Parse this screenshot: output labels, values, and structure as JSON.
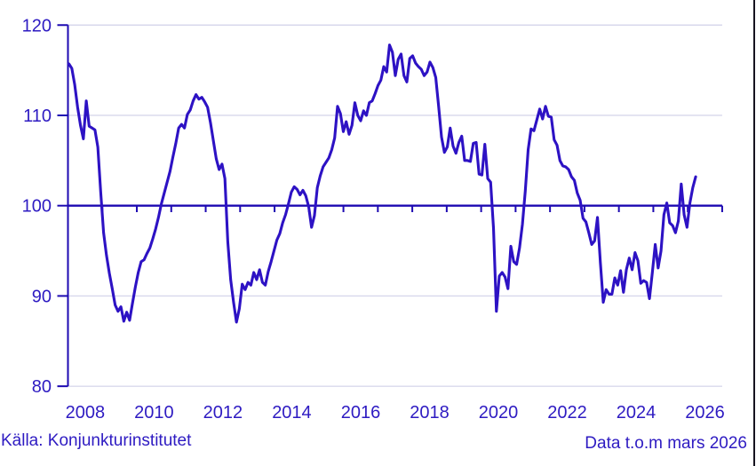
{
  "footer": {
    "source": "Källa: Konjunkturinstitutet",
    "note": "Data t.o.m mars 2026"
  },
  "colors": {
    "line": "#2d12c4",
    "axis": "#1d0ab2",
    "text": "#2e1bc2",
    "grid": "#d8d8ec",
    "screen_edge": "#16131f",
    "background": "#ffffff"
  },
  "chart_data": {
    "type": "line",
    "title": "",
    "xlabel": "",
    "ylabel": "",
    "ylim": [
      80,
      120
    ],
    "yticks": [
      80,
      90,
      100,
      110,
      120
    ],
    "baseline": 100,
    "grid": "horizontal-light",
    "legend": "none",
    "x_year_labels": [
      "2008",
      "2010",
      "2012",
      "2014",
      "2016",
      "2018",
      "2020",
      "2022",
      "2024",
      "2026"
    ],
    "x_tick_years_first": 2008,
    "x_tick_years_last": 2027,
    "series": [
      {
        "frequency": "monthly",
        "start": "2008-02",
        "end": "2026-03",
        "values": [
          115.7,
          115.2,
          113.4,
          110.9,
          108.9,
          107.4,
          111.6,
          108.8,
          108.6,
          108.4,
          106.5,
          101.5,
          97.0,
          94.5,
          92.5,
          90.8,
          89.0,
          88.3,
          88.8,
          87.2,
          88.2,
          87.3,
          89.2,
          91.0,
          92.6,
          93.8,
          94.0,
          94.7,
          95.3,
          96.3,
          97.4,
          98.7,
          100.2,
          101.4,
          102.6,
          103.8,
          105.4,
          106.9,
          108.6,
          109.0,
          108.6,
          110.1,
          110.6,
          111.6,
          112.3,
          111.8,
          112.0,
          111.5,
          110.9,
          109.2,
          107.2,
          105.2,
          104.0,
          104.6,
          103.0,
          96.0,
          91.8,
          89.3,
          87.1,
          88.6,
          91.3,
          90.7,
          91.5,
          91.2,
          92.6,
          91.8,
          92.9,
          91.5,
          91.2,
          92.7,
          93.8,
          95.0,
          96.2,
          96.9,
          98.1,
          99.0,
          100.2,
          101.5,
          102.1,
          101.8,
          101.2,
          101.7,
          101.1,
          99.9,
          97.6,
          98.9,
          102.0,
          103.3,
          104.3,
          104.8,
          105.3,
          106.2,
          107.5,
          111.0,
          110.2,
          108.2,
          109.3,
          107.9,
          108.9,
          111.4,
          110.0,
          109.4,
          110.5,
          110.0,
          111.4,
          111.6,
          112.4,
          113.3,
          113.9,
          115.4,
          114.8,
          117.8,
          117.0,
          114.4,
          116.2,
          116.8,
          114.4,
          113.7,
          116.3,
          116.6,
          115.8,
          115.4,
          115.1,
          114.4,
          114.8,
          115.9,
          115.3,
          114.2,
          111.0,
          107.6,
          105.9,
          106.5,
          108.6,
          106.6,
          105.8,
          107.0,
          107.7,
          105.0,
          105.0,
          104.9,
          106.9,
          107.0,
          103.5,
          103.4,
          106.8,
          103.0,
          102.6,
          97.5,
          88.3,
          92.2,
          92.6,
          92.1,
          90.8,
          95.5,
          93.8,
          93.5,
          95.3,
          97.9,
          101.6,
          106.2,
          108.5,
          108.3,
          109.5,
          110.7,
          109.6,
          111.0,
          109.9,
          109.8,
          107.3,
          106.7,
          105.0,
          104.4,
          104.3,
          104.0,
          103.2,
          102.8,
          101.4,
          100.6,
          98.6,
          98.2,
          97.0,
          95.7,
          96.1,
          98.7,
          93.7,
          89.3,
          90.7,
          90.2,
          90.2,
          92.0,
          91.2,
          92.8,
          90.4,
          92.9,
          94.2,
          92.9,
          94.8,
          93.9,
          91.4,
          91.7,
          91.5,
          89.7,
          92.6,
          95.7,
          93.1,
          95.0,
          99.0,
          100.3,
          98.1,
          97.8,
          97.0,
          98.3,
          102.4,
          99.0,
          97.6,
          100.3,
          102.0,
          103.2
        ]
      }
    ]
  }
}
